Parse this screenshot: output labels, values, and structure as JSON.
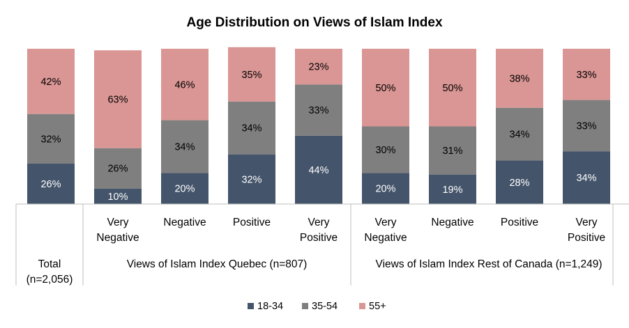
{
  "chart_data": {
    "type": "bar",
    "stacked": true,
    "title": "Age Distribution on Views of Islam Index",
    "series": [
      {
        "name": "18-34",
        "color": "#44546a",
        "values": [
          26,
          10,
          20,
          32,
          44,
          20,
          19,
          28,
          34
        ]
      },
      {
        "name": "35-54",
        "color": "#7f7f7f",
        "values": [
          32,
          26,
          34,
          34,
          33,
          30,
          31,
          34,
          33
        ]
      },
      {
        "name": "55+",
        "color": "#d99694",
        "values": [
          42,
          63,
          46,
          35,
          23,
          50,
          50,
          38,
          33
        ]
      }
    ],
    "categories": [
      {
        "lines": [],
        "group_index": 0
      },
      {
        "lines": [
          "Very",
          "Negative"
        ],
        "group_index": 1
      },
      {
        "lines": [
          "Negative"
        ],
        "group_index": 1
      },
      {
        "lines": [
          "Positive"
        ],
        "group_index": 1
      },
      {
        "lines": [
          "Very",
          "Positive"
        ],
        "group_index": 1
      },
      {
        "lines": [
          "Very",
          "Negative"
        ],
        "group_index": 2
      },
      {
        "lines": [
          "Negative"
        ],
        "group_index": 2
      },
      {
        "lines": [
          "Positive"
        ],
        "group_index": 2
      },
      {
        "lines": [
          "Very",
          "Positive"
        ],
        "group_index": 2
      }
    ],
    "groups": [
      {
        "lines": [
          "Total",
          "(n=2,056)"
        ]
      },
      {
        "lines": [
          "Views of Islam Index Quebec (n=807)"
        ]
      },
      {
        "lines": [
          "Views of Islam Index Rest of Canada (n=1,249)"
        ]
      }
    ],
    "value_suffix": "%",
    "ylim": [
      0,
      100
    ],
    "grid": false,
    "legend_position": "bottom"
  }
}
